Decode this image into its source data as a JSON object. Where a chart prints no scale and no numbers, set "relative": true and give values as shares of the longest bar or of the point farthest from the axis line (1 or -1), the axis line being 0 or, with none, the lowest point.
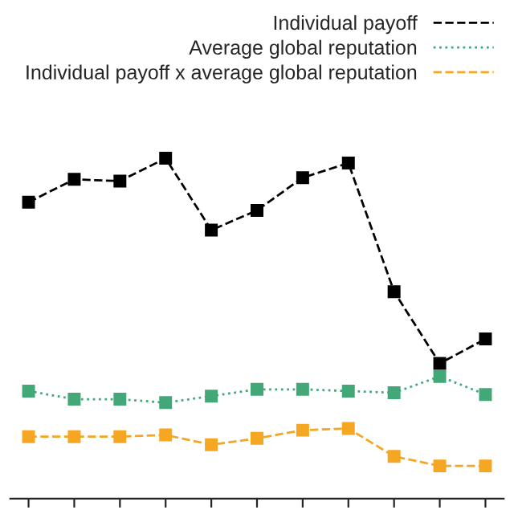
{
  "chart_data": {
    "type": "line",
    "relative": true,
    "categories": [
      null,
      null,
      null,
      null,
      null,
      null,
      null,
      null,
      null,
      null,
      null
    ],
    "marker": "square",
    "legend": "top right",
    "grid": false,
    "series": [
      {
        "name": "Individual payoff",
        "color": "#000000",
        "line_style": "dashed",
        "values": [
          0.871,
          0.938,
          0.933,
          1,
          0.789,
          0.847,
          0.943,
          0.986,
          0.608,
          0.397,
          0.469
        ]
      },
      {
        "name": "Average global reputation",
        "color": "#43a878",
        "line_style": "dotted",
        "values": [
          0.316,
          0.292,
          0.292,
          0.282,
          0.301,
          0.321,
          0.321,
          0.316,
          0.311,
          0.359,
          0.306
        ]
      },
      {
        "name": "Individual payoff x average global reputation",
        "color": "#f5a623",
        "line_style": "dashed",
        "values": [
          0.182,
          0.182,
          0.182,
          0.187,
          0.158,
          0.177,
          0.201,
          0.206,
          0.124,
          0.096,
          0.096
        ]
      }
    ]
  }
}
